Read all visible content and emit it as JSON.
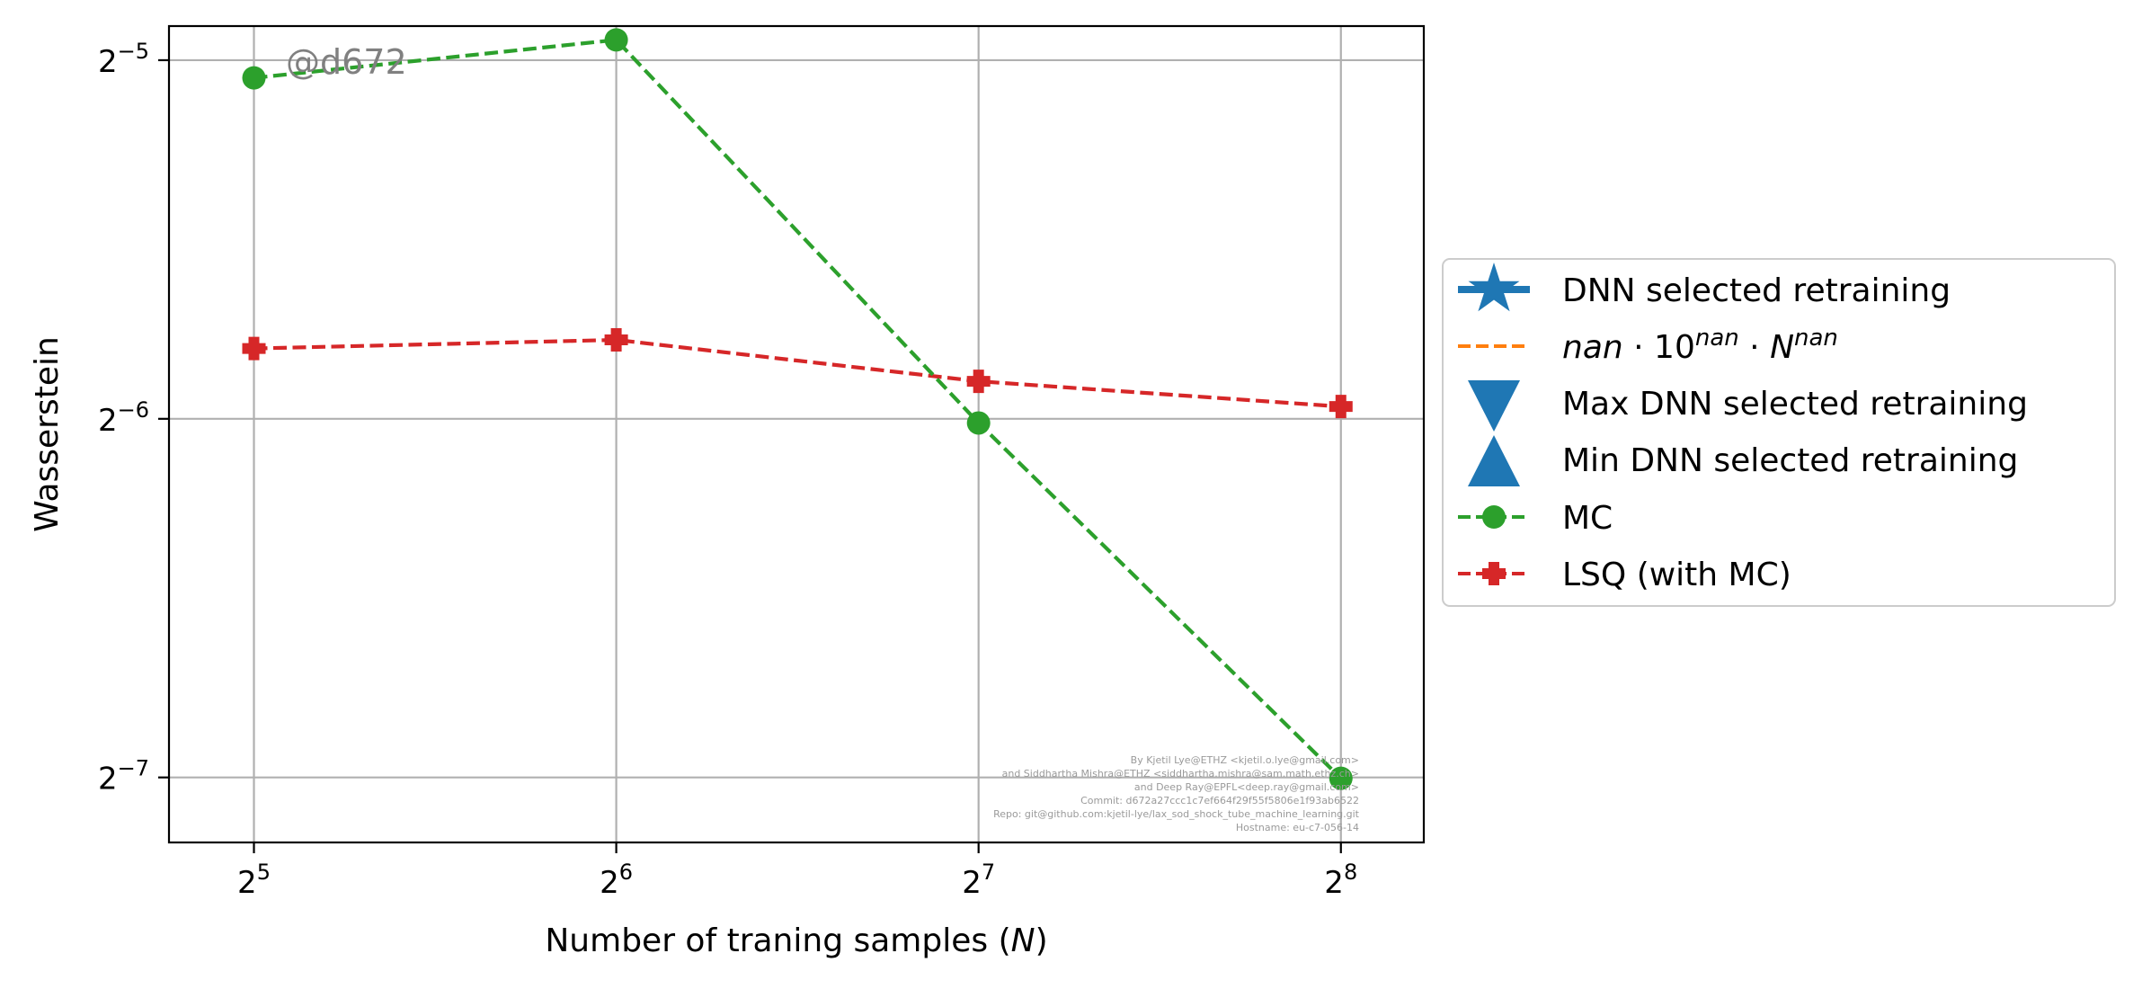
{
  "chart_data": {
    "type": "line",
    "xlabel_main": "Number of traning samples (",
    "xlabel_var": "N",
    "xlabel_end": ")",
    "ylabel": "Wasserstein",
    "x_scale": "log2",
    "y_scale": "log2",
    "x": [
      32,
      64,
      128,
      256
    ],
    "xlim": [
      27.2,
      300
    ],
    "ylim": [
      0.00689,
      0.03338
    ],
    "x_ticks": [
      {
        "value": 32,
        "base": "2",
        "exp": "5"
      },
      {
        "value": 64,
        "base": "2",
        "exp": "6"
      },
      {
        "value": 128,
        "base": "2",
        "exp": "7"
      },
      {
        "value": 256,
        "base": "2",
        "exp": "8"
      }
    ],
    "y_ticks": [
      {
        "value": 0.03125,
        "base": "2",
        "exp": "−5"
      },
      {
        "value": 0.015625,
        "base": "2",
        "exp": "−6"
      },
      {
        "value": 0.0078125,
        "base": "2",
        "exp": "−7"
      }
    ],
    "grid": true,
    "legend_placement": "outside-right",
    "series": [
      {
        "name": "MC",
        "color": "#2ca02c",
        "marker": "circle",
        "linestyle": "dashed",
        "values": [
          0.0302,
          0.0325,
          0.0155,
          0.0078
        ]
      },
      {
        "name": "LSQ (with MC)",
        "color": "#d62728",
        "marker": "plus",
        "linestyle": "dashed",
        "values": [
          0.0179,
          0.0182,
          0.0168,
          0.016
        ]
      }
    ],
    "legend": [
      {
        "key": "dnn",
        "label": "DNN selected retraining",
        "color": "#1f77b4",
        "marker": "star"
      },
      {
        "key": "fit",
        "label_nan1": "nan",
        "label_dot1": " · 10",
        "label_sup1": "nan",
        "label_dot2": " · ",
        "label_N": "N",
        "label_sup2": "nan",
        "color": "#ff7f0e",
        "marker": "none"
      },
      {
        "key": "max",
        "label": "Max DNN selected retraining",
        "color": "#1f77b4",
        "marker": "triangle-down"
      },
      {
        "key": "min",
        "label": "Min DNN selected retraining",
        "color": "#1f77b4",
        "marker": "triangle-up"
      },
      {
        "key": "mc",
        "label": "MC",
        "color": "#2ca02c",
        "marker": "circle"
      },
      {
        "key": "lsq",
        "label": "LSQ (with MC)",
        "color": "#d62728",
        "marker": "plus"
      }
    ],
    "watermark": "@d672",
    "credits": [
      "By Kjetil Lye@ETHZ <kjetil.o.lye@gmail.com>",
      "and Siddhartha Mishra@ETHZ <siddhartha.mishra@sam.math.ethz.ch>",
      "and Deep Ray@EPFL<deep.ray@gmail.com>",
      "Commit: d672a27ccc1c7ef664f29f55f5806e1f93ab6522",
      "Repo: git@github.com:kjetil-lye/lax_sod_shock_tube_machine_learning.git",
      "Hostname: eu-c7-056-14"
    ]
  }
}
